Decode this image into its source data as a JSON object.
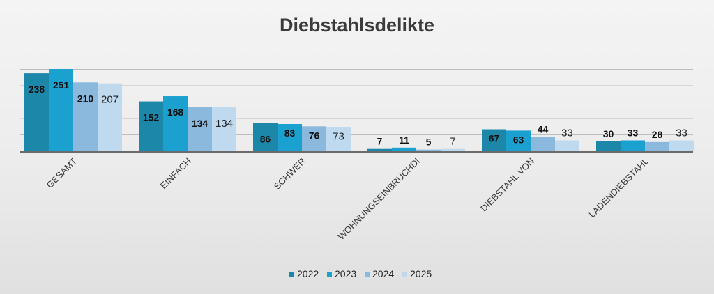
{
  "chart_data": {
    "type": "bar",
    "title": "Diebstahlsdelikte",
    "categories": [
      "GESAMT",
      "EINFACH",
      "SCHWER",
      "WOHNUNGSEINBRUCHDI",
      "DIEBSTAHL VON",
      "LADENDIEBSTAHL"
    ],
    "series": [
      {
        "name": "2022",
        "values": [
          238,
          152,
          86,
          7,
          67,
          30
        ]
      },
      {
        "name": "2023",
        "values": [
          251,
          168,
          83,
          11,
          63,
          33
        ]
      },
      {
        "name": "2024",
        "values": [
          210,
          134,
          76,
          5,
          44,
          28
        ]
      },
      {
        "name": "2025",
        "values": [
          207,
          134,
          73,
          7,
          33,
          33
        ]
      }
    ],
    "colors": [
      "#1c87a9",
      "#1aa1cf",
      "#8ab9dd",
      "#bfd9ef"
    ],
    "ylim": [
      0,
      250
    ],
    "grid": true,
    "legend": "bottom",
    "xlabel": "",
    "ylabel": ""
  }
}
